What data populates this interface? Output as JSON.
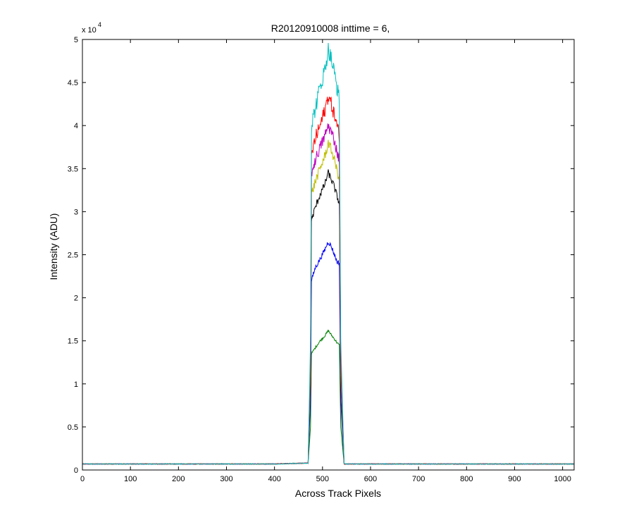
{
  "chart_data": {
    "type": "line",
    "title": "R20120910008 inttime = 6,",
    "xlabel": "Across Track Pixels",
    "ylabel": "Intensity (ADU)",
    "y_exponent_label": "x 10",
    "y_exponent": "4",
    "xlim": [
      0,
      1024
    ],
    "ylim": [
      0,
      5
    ],
    "xticks": [
      0,
      100,
      200,
      300,
      400,
      500,
      600,
      700,
      800,
      900,
      1000
    ],
    "yticks": [
      0,
      0.5,
      1,
      1.5,
      2,
      2.5,
      3,
      3.5,
      4,
      4.5,
      5
    ],
    "ytick_labels": [
      "0",
      "0.5",
      "1",
      "1.5",
      "2",
      "2.5",
      "3",
      "3.5",
      "4",
      "4.5",
      "5"
    ],
    "grid": false,
    "legend": false,
    "baseline_value": 0.07,
    "peak_range": [
      475,
      538
    ],
    "series": [
      {
        "color": "#008000",
        "x": [
          0,
          200,
          400,
          470,
          475,
          477,
          485,
          495,
          505,
          510,
          512,
          518,
          525,
          530,
          535,
          538,
          545,
          600,
          800,
          1024
        ],
        "y": [
          0.07,
          0.07,
          0.07,
          0.08,
          0.5,
          1.35,
          1.42,
          1.5,
          1.56,
          1.6,
          1.62,
          1.57,
          1.52,
          1.48,
          1.45,
          0.5,
          0.07,
          0.07,
          0.07,
          0.07
        ]
      },
      {
        "color": "#0000ff",
        "x": [
          0,
          200,
          400,
          470,
          475,
          477,
          485,
          495,
          505,
          510,
          512,
          518,
          525,
          530,
          535,
          538,
          545,
          600,
          800,
          1024
        ],
        "y": [
          0.07,
          0.07,
          0.07,
          0.08,
          0.8,
          2.2,
          2.35,
          2.45,
          2.56,
          2.63,
          2.65,
          2.6,
          2.5,
          2.42,
          2.4,
          0.8,
          0.07,
          0.07,
          0.07,
          0.07
        ]
      },
      {
        "color": "#000000",
        "x": [
          0,
          200,
          400,
          470,
          475,
          477,
          485,
          495,
          505,
          510,
          512,
          518,
          525,
          530,
          535,
          538,
          545,
          600,
          800,
          1024
        ],
        "y": [
          0.07,
          0.07,
          0.07,
          0.08,
          1.0,
          2.9,
          3.05,
          3.2,
          3.32,
          3.42,
          3.45,
          3.38,
          3.28,
          3.18,
          3.1,
          1.0,
          0.07,
          0.07,
          0.07,
          0.07
        ]
      },
      {
        "color": "#bfbf00",
        "x": [
          0,
          200,
          400,
          470,
          475,
          477,
          485,
          495,
          505,
          510,
          512,
          518,
          525,
          530,
          535,
          538,
          545,
          600,
          800,
          1024
        ],
        "y": [
          0.07,
          0.07,
          0.07,
          0.08,
          1.1,
          3.2,
          3.35,
          3.5,
          3.65,
          3.75,
          3.8,
          3.72,
          3.6,
          3.48,
          3.38,
          1.1,
          0.07,
          0.07,
          0.07,
          0.07
        ]
      },
      {
        "color": "#bf00bf",
        "x": [
          0,
          200,
          400,
          470,
          475,
          477,
          485,
          495,
          505,
          510,
          512,
          518,
          525,
          530,
          535,
          538,
          545,
          600,
          800,
          1024
        ],
        "y": [
          0.07,
          0.07,
          0.07,
          0.08,
          1.2,
          3.45,
          3.6,
          3.75,
          3.88,
          3.97,
          4.0,
          3.93,
          3.82,
          3.7,
          3.6,
          1.2,
          0.07,
          0.07,
          0.07,
          0.07
        ]
      },
      {
        "color": "#ff0000",
        "x": [
          0,
          200,
          400,
          470,
          475,
          477,
          485,
          495,
          505,
          510,
          512,
          518,
          525,
          530,
          535,
          538,
          545,
          600,
          800,
          1024
        ],
        "y": [
          0.07,
          0.07,
          0.07,
          0.08,
          1.3,
          3.65,
          3.85,
          4.0,
          4.18,
          4.3,
          4.35,
          4.25,
          4.12,
          4.0,
          3.88,
          1.3,
          0.07,
          0.07,
          0.07,
          0.07
        ]
      },
      {
        "color": "#00bfbf",
        "x": [
          0,
          200,
          400,
          470,
          475,
          477,
          485,
          495,
          505,
          510,
          512,
          518,
          525,
          530,
          535,
          538,
          545,
          600,
          800,
          1024
        ],
        "y": [
          0.07,
          0.07,
          0.07,
          0.08,
          1.5,
          4.0,
          4.2,
          4.45,
          4.65,
          4.82,
          4.88,
          4.78,
          4.6,
          4.45,
          4.3,
          1.5,
          0.07,
          0.07,
          0.07,
          0.07
        ]
      }
    ]
  }
}
